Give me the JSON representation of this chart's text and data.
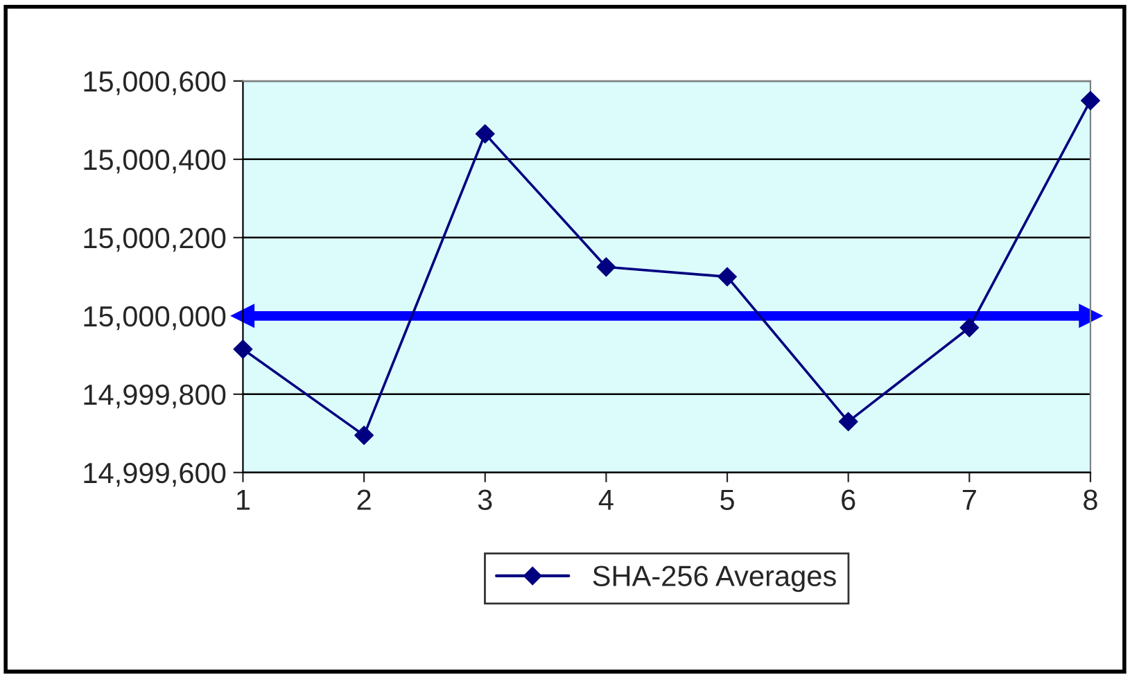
{
  "chart_data": {
    "type": "line",
    "x": [
      1,
      2,
      3,
      4,
      5,
      6,
      7,
      8
    ],
    "series": [
      {
        "name": "SHA-256 Averages",
        "color": "#000080",
        "values": [
          14999915,
          14999695,
          15000465,
          15000125,
          15000100,
          14999730,
          14999970,
          15000550
        ]
      }
    ],
    "xlim": [
      1,
      8
    ],
    "xticks": [
      1,
      2,
      3,
      4,
      5,
      6,
      7,
      8
    ],
    "ylim": [
      14999600,
      15000600
    ],
    "yticks": [
      {
        "value": 14999600,
        "label": "14,999,600"
      },
      {
        "value": 14999800,
        "label": "14,999,800"
      },
      {
        "value": 15000000,
        "label": "15,000,000"
      },
      {
        "value": 15000200,
        "label": "15,000,200"
      },
      {
        "value": 15000400,
        "label": "15,000,400"
      },
      {
        "value": 15000600,
        "label": "15,000,600"
      }
    ],
    "ref_lines": [
      {
        "axis": "y",
        "value": 15000000,
        "color": "#0000ff",
        "line_style": "solid"
      }
    ],
    "grid": "y",
    "legend": "bottom",
    "marker": "diamond",
    "line_style": "solid"
  }
}
